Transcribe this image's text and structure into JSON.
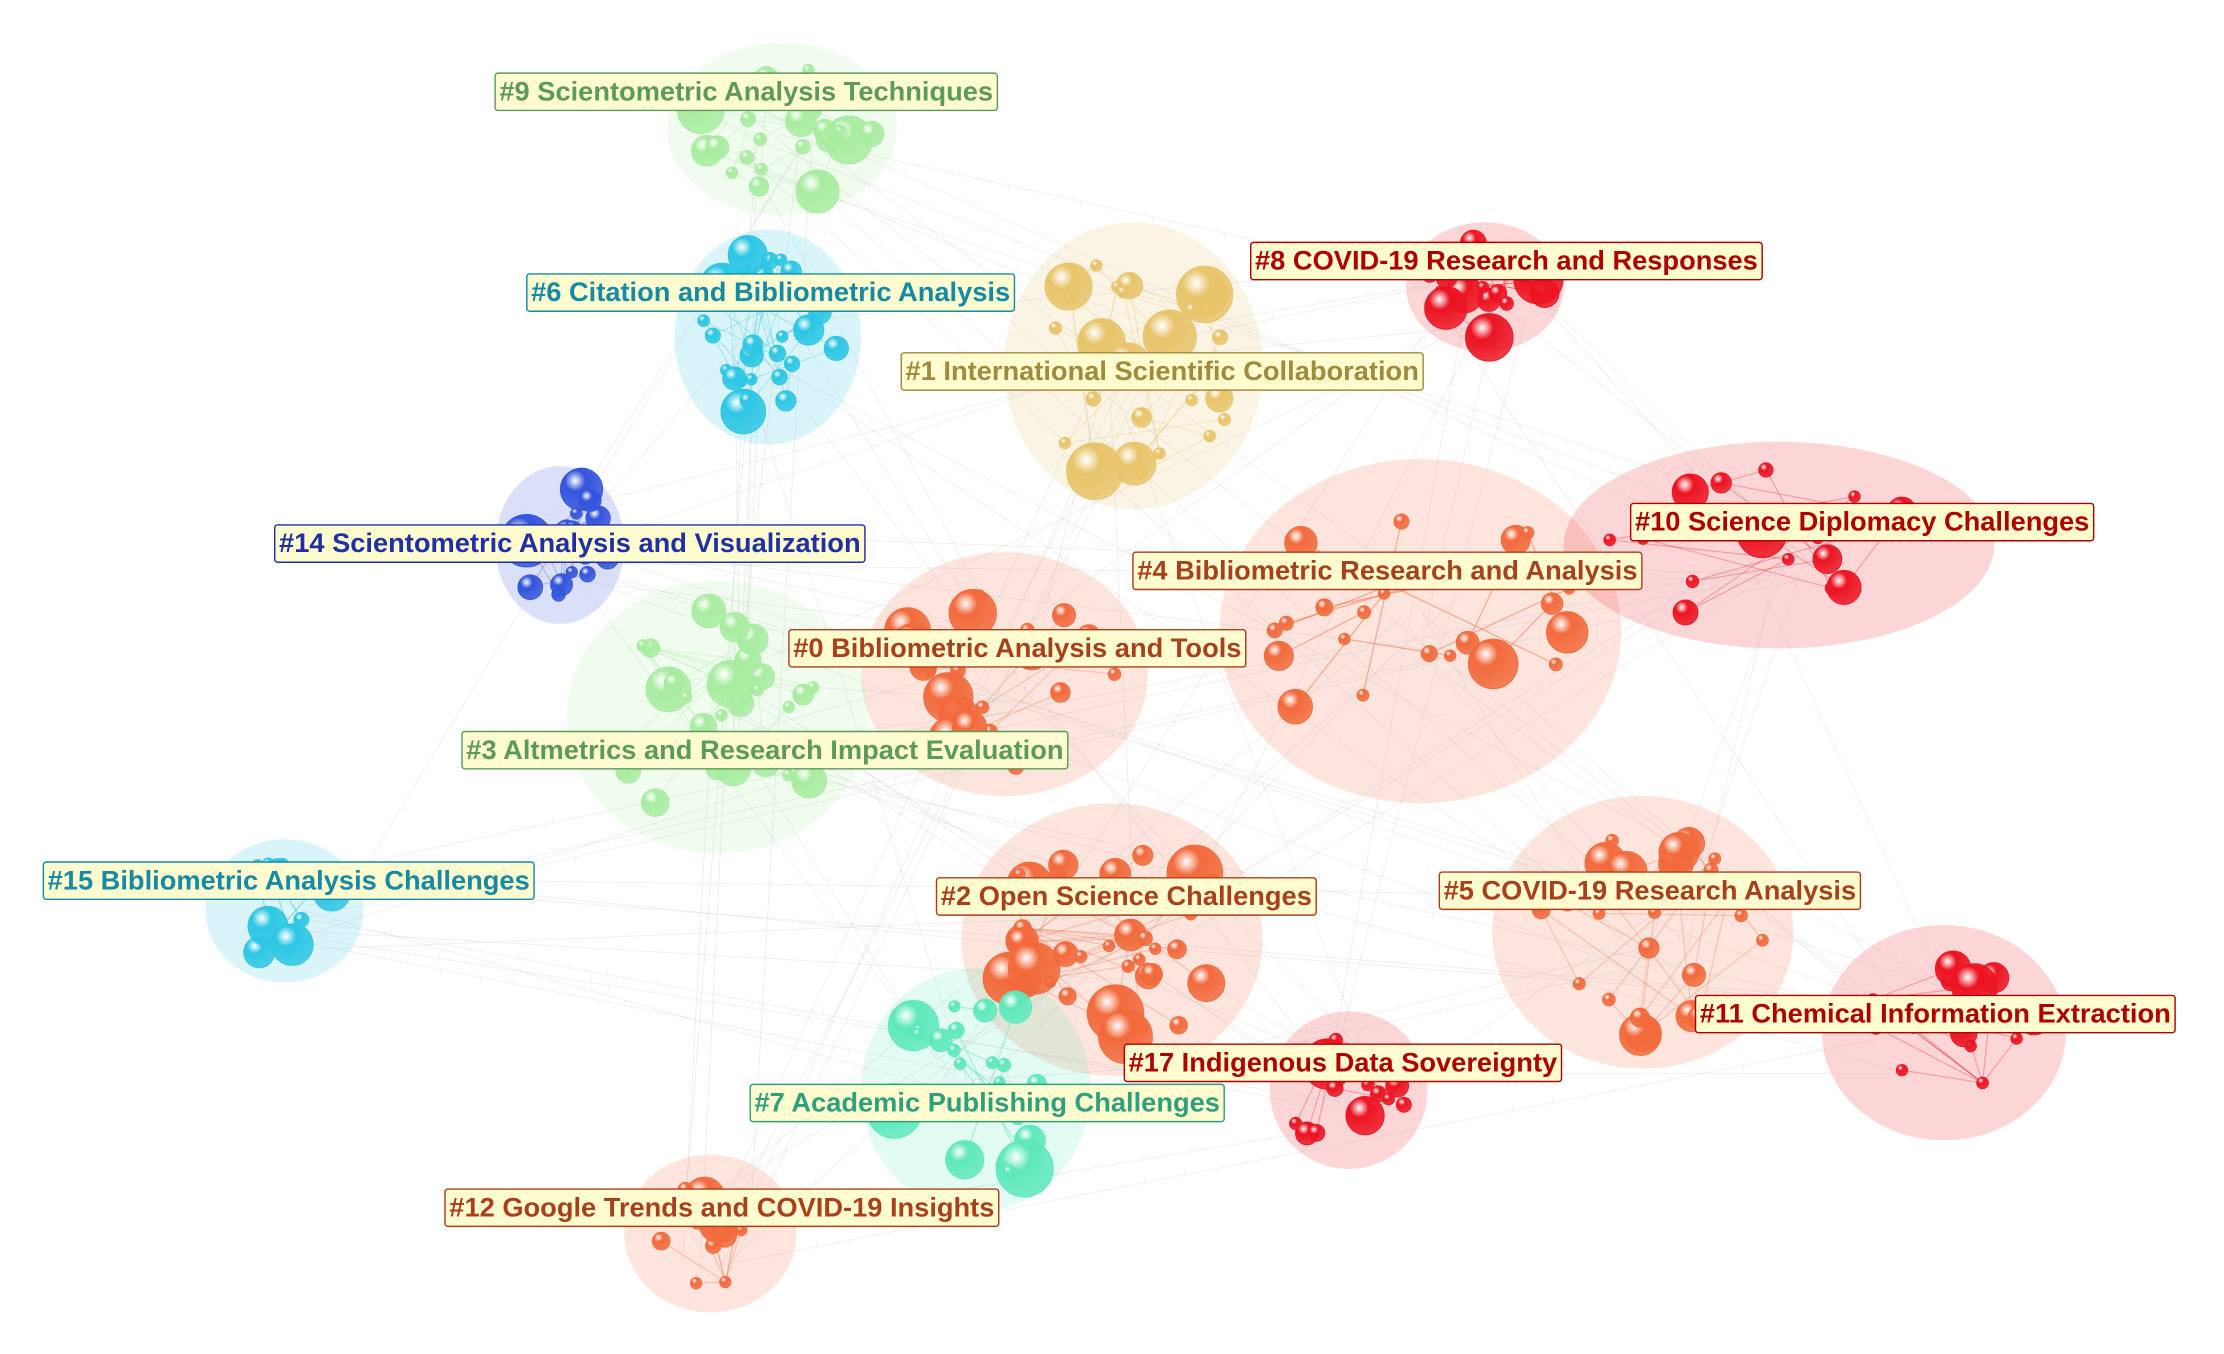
{
  "clusters": [
    {
      "label": "#0 Bibliometric Analysis and Tools"
    },
    {
      "label": "#1 International Scientific Collaboration"
    },
    {
      "label": "#2 Open Science Challenges"
    },
    {
      "label": "#3 Altmetrics and Research Impact Evaluation"
    },
    {
      "label": "#4 Bibliometric Research and Analysis"
    },
    {
      "label": "#5 COVID-19 Research Analysis"
    },
    {
      "label": "#6 Citation and Bibliometric Analysis"
    },
    {
      "label": "#7 Academic Publishing Challenges"
    },
    {
      "label": "#8 COVID-19 Research and Responses"
    },
    {
      "label": "#9 Scientometric Analysis Techniques"
    },
    {
      "label": "#10 Science Diplomacy Challenges"
    },
    {
      "label": "#11 Chemical Information Extraction"
    },
    {
      "label": "#12 Google Trends and COVID-19 Insights"
    },
    {
      "label": "#14 Scientometric Analysis and Visualization"
    },
    {
      "label": "#15 Bibliometric Analysis Challenges"
    },
    {
      "label": "#17 Indigenous Data Sovereignty"
    }
  ]
}
